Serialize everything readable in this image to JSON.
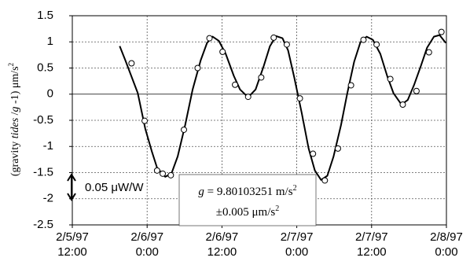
{
  "chart_data": {
    "type": "scatter",
    "ylabel": [
      "(gravity ",
      "tides",
      " /",
      "g",
      " -1) μm/s",
      "2"
    ],
    "xlim": [
      0,
      60
    ],
    "ylim": [
      -2.5,
      1.5
    ],
    "xticks": [
      {
        "value": 0,
        "label": [
          "2/5/97",
          "12:00"
        ]
      },
      {
        "value": 12,
        "label": [
          "2/6/97",
          "0:00"
        ]
      },
      {
        "value": 24,
        "label": [
          "2/6/97",
          "12:00"
        ]
      },
      {
        "value": 36,
        "label": [
          "2/7/97",
          "0:00"
        ]
      },
      {
        "value": 48,
        "label": [
          "2/7/97",
          "12:00"
        ]
      },
      {
        "value": 60,
        "label": [
          "2/8/97",
          "0:00"
        ]
      }
    ],
    "yticks": [
      1.5,
      1,
      0.5,
      0,
      -0.5,
      -1,
      -1.5,
      -2,
      -2.5
    ],
    "grid": true,
    "series": [
      {
        "style": "markers",
        "color": "#000000",
        "x": [
          9.5,
          11.6,
          13.6,
          14.5,
          15.8,
          17.9,
          20.1,
          22.0,
          24.1,
          26.1,
          28.2,
          30.3,
          32.3,
          34.4,
          36.5,
          38.6,
          40.5,
          42.6,
          44.7,
          46.7,
          48.8,
          51.0,
          53.0,
          55.2,
          57.2,
          59.2
        ],
        "values": [
          0.59,
          -0.51,
          -1.46,
          -1.52,
          -1.55,
          -0.68,
          0.5,
          1.07,
          0.81,
          0.18,
          -0.05,
          0.32,
          1.08,
          0.95,
          -0.08,
          -1.14,
          -1.65,
          -1.04,
          0.17,
          1.04,
          0.95,
          0.29,
          -0.2,
          0.06,
          0.8,
          1.19
        ]
      },
      {
        "style": "line",
        "color": "#000000",
        "x": [
          7.6,
          8.5,
          10.5,
          11.7,
          12.8,
          13.6,
          14.9,
          15.9,
          16.9,
          18.1,
          19.3,
          20.6,
          21.6,
          22.5,
          23.5,
          24.6,
          25.9,
          26.9,
          28.2,
          29.4,
          30.7,
          31.7,
          32.7,
          33.7,
          34.6,
          35.6,
          36.8,
          37.9,
          38.9,
          39.9,
          40.9,
          41.9,
          43.1,
          44.1,
          45.2,
          46.2,
          47.2,
          48.2,
          49.4,
          50.5,
          51.5,
          52.8,
          53.8,
          54.8,
          55.9,
          56.9,
          58.0,
          58.9,
          59.9
        ],
        "values": [
          0.92,
          0.65,
          0.02,
          -0.66,
          -1.11,
          -1.41,
          -1.58,
          -1.52,
          -1.19,
          -0.59,
          0.09,
          0.65,
          0.98,
          1.1,
          1.02,
          0.77,
          0.35,
          0.09,
          -0.06,
          0.09,
          0.54,
          0.92,
          1.11,
          1.07,
          0.84,
          0.32,
          -0.36,
          -1.04,
          -1.46,
          -1.64,
          -1.56,
          -1.19,
          -0.59,
          0.02,
          0.62,
          0.99,
          1.1,
          1.04,
          0.77,
          0.35,
          0.02,
          -0.2,
          -0.11,
          0.17,
          0.54,
          0.89,
          1.1,
          1.13,
          0.98
        ]
      }
    ],
    "annotations": [
      {
        "text": "0.05 μW/W"
      },
      {
        "text": [
          "g",
          " = 9.80103251 m/s",
          "2"
        ]
      },
      {
        "text": [
          "±0.005 μm/s",
          "2"
        ]
      }
    ]
  }
}
